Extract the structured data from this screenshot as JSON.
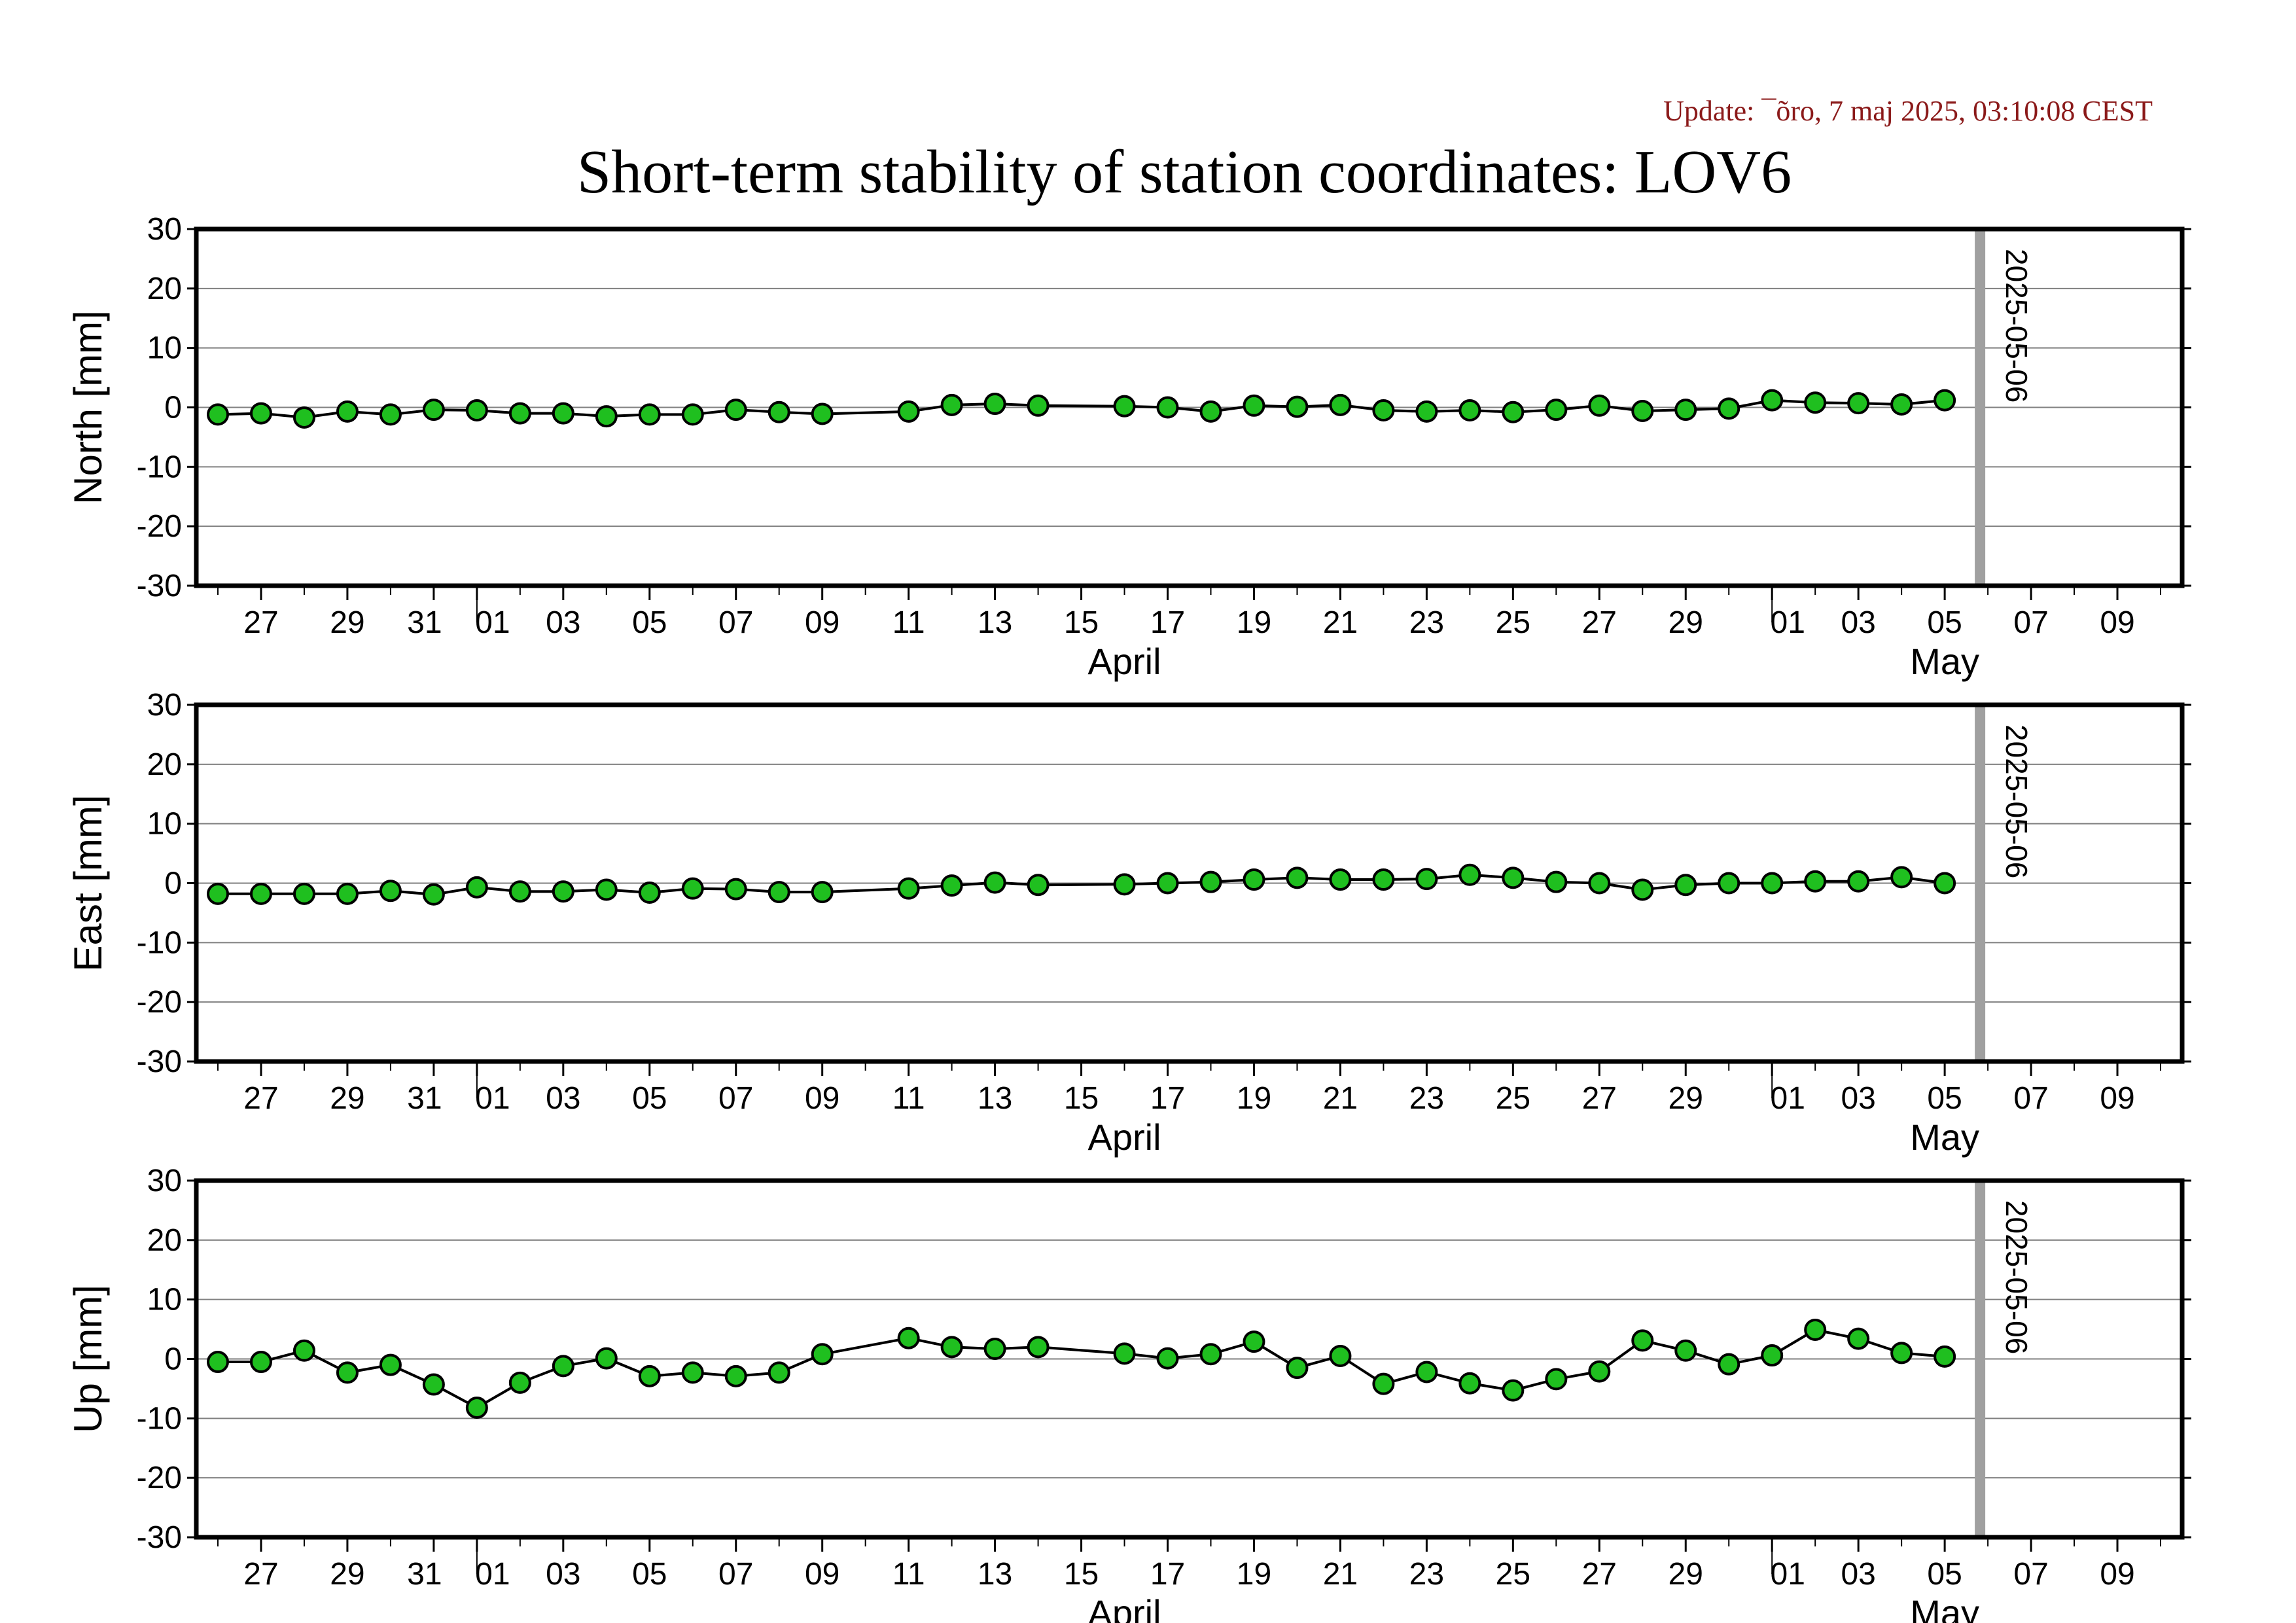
{
  "header": {
    "update": "Update: ¯õro, 7 maj 2025, 03:10:08 CEST",
    "title": "Short-term stability of station coordinates: LOV6"
  },
  "colors": {
    "point_fill": "#1fbf1f",
    "point_stroke": "#000000",
    "line": "#000000",
    "marker_line": "#a0a0a0",
    "grid": "#808080",
    "update_text": "#8b1a1a"
  },
  "chart_data": [
    {
      "type": "line",
      "ylabel": "North [mm]",
      "ylim": [
        -30,
        30
      ],
      "yticks": [
        30,
        20,
        10,
        0,
        -10,
        -20,
        -30
      ],
      "grid": true,
      "xlim": [
        "2025-03-25T12:00",
        "2025-05-10T12:00"
      ],
      "xticks": [
        {
          "date": "2025-03-27",
          "label": "27"
        },
        {
          "date": "2025-03-29",
          "label": "29"
        },
        {
          "date": "2025-03-31",
          "label": "31"
        },
        {
          "date": "2025-04-01",
          "label": "01"
        },
        {
          "date": "2025-04-03",
          "label": "03"
        },
        {
          "date": "2025-04-05",
          "label": "05"
        },
        {
          "date": "2025-04-07",
          "label": "07"
        },
        {
          "date": "2025-04-09",
          "label": "09"
        },
        {
          "date": "2025-04-11",
          "label": "11"
        },
        {
          "date": "2025-04-13",
          "label": "13"
        },
        {
          "date": "2025-04-15",
          "label": "15"
        },
        {
          "date": "2025-04-17",
          "label": "17"
        },
        {
          "date": "2025-04-19",
          "label": "19"
        },
        {
          "date": "2025-04-21",
          "label": "21"
        },
        {
          "date": "2025-04-23",
          "label": "23"
        },
        {
          "date": "2025-04-25",
          "label": "25"
        },
        {
          "date": "2025-04-27",
          "label": "27"
        },
        {
          "date": "2025-04-29",
          "label": "29"
        },
        {
          "date": "2025-05-01",
          "label": "01"
        },
        {
          "date": "2025-05-03",
          "label": "03"
        },
        {
          "date": "2025-05-05",
          "label": "05"
        },
        {
          "date": "2025-05-07",
          "label": "07"
        },
        {
          "date": "2025-05-09",
          "label": "09"
        }
      ],
      "months": [
        {
          "date": "2025-04-16",
          "label": "April"
        },
        {
          "date": "2025-05-05",
          "label": "May"
        }
      ],
      "month_boundaries": [
        "2025-04-01",
        "2025-05-01"
      ],
      "marker": {
        "date": "2025-05-06",
        "label": "2025-05-06"
      },
      "series": [
        {
          "x": [
            "2025-03-26",
            "2025-03-27",
            "2025-03-28",
            "2025-03-29",
            "2025-03-30",
            "2025-03-31",
            "2025-04-01",
            "2025-04-02",
            "2025-04-03",
            "2025-04-04",
            "2025-04-05",
            "2025-04-06",
            "2025-04-07",
            "2025-04-08",
            "2025-04-09",
            "2025-04-11",
            "2025-04-12",
            "2025-04-13",
            "2025-04-14",
            "2025-04-16",
            "2025-04-17",
            "2025-04-18",
            "2025-04-19",
            "2025-04-20",
            "2025-04-21",
            "2025-04-22",
            "2025-04-23",
            "2025-04-24",
            "2025-04-25",
            "2025-04-26",
            "2025-04-27",
            "2025-04-28",
            "2025-04-29",
            "2025-04-30",
            "2025-05-01",
            "2025-05-02",
            "2025-05-03",
            "2025-05-04",
            "2025-05-05"
          ],
          "values": [
            -1.2,
            -1.0,
            -1.7,
            -0.7,
            -1.2,
            -0.4,
            -0.5,
            -1.0,
            -1.0,
            -1.5,
            -1.2,
            -1.2,
            -0.4,
            -0.8,
            -1.1,
            -0.7,
            0.4,
            0.6,
            0.3,
            0.2,
            0.0,
            -0.7,
            0.3,
            0.1,
            0.4,
            -0.5,
            -0.7,
            -0.5,
            -0.8,
            -0.4,
            0.3,
            -0.6,
            -0.4,
            -0.2,
            1.2,
            0.8,
            0.7,
            0.5,
            1.2
          ]
        }
      ]
    },
    {
      "type": "line",
      "ylabel": "East [mm]",
      "ylim": [
        -30,
        30
      ],
      "yticks": [
        30,
        20,
        10,
        0,
        -10,
        -20,
        -30
      ],
      "grid": true,
      "xlim": [
        "2025-03-25T12:00",
        "2025-05-10T12:00"
      ],
      "xticks": [
        {
          "date": "2025-03-27",
          "label": "27"
        },
        {
          "date": "2025-03-29",
          "label": "29"
        },
        {
          "date": "2025-03-31",
          "label": "31"
        },
        {
          "date": "2025-04-01",
          "label": "01"
        },
        {
          "date": "2025-04-03",
          "label": "03"
        },
        {
          "date": "2025-04-05",
          "label": "05"
        },
        {
          "date": "2025-04-07",
          "label": "07"
        },
        {
          "date": "2025-04-09",
          "label": "09"
        },
        {
          "date": "2025-04-11",
          "label": "11"
        },
        {
          "date": "2025-04-13",
          "label": "13"
        },
        {
          "date": "2025-04-15",
          "label": "15"
        },
        {
          "date": "2025-04-17",
          "label": "17"
        },
        {
          "date": "2025-04-19",
          "label": "19"
        },
        {
          "date": "2025-04-21",
          "label": "21"
        },
        {
          "date": "2025-04-23",
          "label": "23"
        },
        {
          "date": "2025-04-25",
          "label": "25"
        },
        {
          "date": "2025-04-27",
          "label": "27"
        },
        {
          "date": "2025-04-29",
          "label": "29"
        },
        {
          "date": "2025-05-01",
          "label": "01"
        },
        {
          "date": "2025-05-03",
          "label": "03"
        },
        {
          "date": "2025-05-05",
          "label": "05"
        },
        {
          "date": "2025-05-07",
          "label": "07"
        },
        {
          "date": "2025-05-09",
          "label": "09"
        }
      ],
      "months": [
        {
          "date": "2025-04-16",
          "label": "April"
        },
        {
          "date": "2025-05-05",
          "label": "May"
        }
      ],
      "month_boundaries": [
        "2025-04-01",
        "2025-05-01"
      ],
      "marker": {
        "date": "2025-05-06",
        "label": "2025-05-06"
      },
      "series": [
        {
          "x": [
            "2025-03-26",
            "2025-03-27",
            "2025-03-28",
            "2025-03-29",
            "2025-03-30",
            "2025-03-31",
            "2025-04-01",
            "2025-04-02",
            "2025-04-03",
            "2025-04-04",
            "2025-04-05",
            "2025-04-06",
            "2025-04-07",
            "2025-04-08",
            "2025-04-09",
            "2025-04-11",
            "2025-04-12",
            "2025-04-13",
            "2025-04-14",
            "2025-04-16",
            "2025-04-17",
            "2025-04-18",
            "2025-04-19",
            "2025-04-20",
            "2025-04-21",
            "2025-04-22",
            "2025-04-23",
            "2025-04-24",
            "2025-04-25",
            "2025-04-26",
            "2025-04-27",
            "2025-04-28",
            "2025-04-29",
            "2025-04-30",
            "2025-05-01",
            "2025-05-02",
            "2025-05-03",
            "2025-05-04",
            "2025-05-05"
          ],
          "values": [
            -1.8,
            -1.8,
            -1.8,
            -1.8,
            -1.3,
            -1.9,
            -0.7,
            -1.4,
            -1.4,
            -1.1,
            -1.6,
            -0.9,
            -1.0,
            -1.5,
            -1.5,
            -0.9,
            -0.4,
            0.1,
            -0.3,
            -0.2,
            0.0,
            0.2,
            0.6,
            0.9,
            0.6,
            0.6,
            0.7,
            1.4,
            0.9,
            0.2,
            0.0,
            -1.1,
            -0.3,
            0.0,
            0.0,
            0.3,
            0.3,
            1.0,
            0.0
          ]
        }
      ]
    },
    {
      "type": "line",
      "ylabel": "Up [mm]",
      "ylim": [
        -30,
        30
      ],
      "yticks": [
        30,
        20,
        10,
        0,
        -10,
        -20,
        -30
      ],
      "grid": true,
      "xlim": [
        "2025-03-25T12:00",
        "2025-05-10T12:00"
      ],
      "xticks": [
        {
          "date": "2025-03-27",
          "label": "27"
        },
        {
          "date": "2025-03-29",
          "label": "29"
        },
        {
          "date": "2025-03-31",
          "label": "31"
        },
        {
          "date": "2025-04-01",
          "label": "01"
        },
        {
          "date": "2025-04-03",
          "label": "03"
        },
        {
          "date": "2025-04-05",
          "label": "05"
        },
        {
          "date": "2025-04-07",
          "label": "07"
        },
        {
          "date": "2025-04-09",
          "label": "09"
        },
        {
          "date": "2025-04-11",
          "label": "11"
        },
        {
          "date": "2025-04-13",
          "label": "13"
        },
        {
          "date": "2025-04-15",
          "label": "15"
        },
        {
          "date": "2025-04-17",
          "label": "17"
        },
        {
          "date": "2025-04-19",
          "label": "19"
        },
        {
          "date": "2025-04-21",
          "label": "21"
        },
        {
          "date": "2025-04-23",
          "label": "23"
        },
        {
          "date": "2025-04-25",
          "label": "25"
        },
        {
          "date": "2025-04-27",
          "label": "27"
        },
        {
          "date": "2025-04-29",
          "label": "29"
        },
        {
          "date": "2025-05-01",
          "label": "01"
        },
        {
          "date": "2025-05-03",
          "label": "03"
        },
        {
          "date": "2025-05-05",
          "label": "05"
        },
        {
          "date": "2025-05-07",
          "label": "07"
        },
        {
          "date": "2025-05-09",
          "label": "09"
        }
      ],
      "months": [
        {
          "date": "2025-04-16",
          "label": "April"
        },
        {
          "date": "2025-05-05",
          "label": "May"
        }
      ],
      "month_boundaries": [
        "2025-04-01",
        "2025-05-01"
      ],
      "marker": {
        "date": "2025-05-06",
        "label": "2025-05-06"
      },
      "series": [
        {
          "x": [
            "2025-03-26",
            "2025-03-27",
            "2025-03-28",
            "2025-03-29",
            "2025-03-30",
            "2025-03-31",
            "2025-04-01",
            "2025-04-02",
            "2025-04-03",
            "2025-04-04",
            "2025-04-05",
            "2025-04-06",
            "2025-04-07",
            "2025-04-08",
            "2025-04-09",
            "2025-04-11",
            "2025-04-12",
            "2025-04-13",
            "2025-04-14",
            "2025-04-16",
            "2025-04-17",
            "2025-04-18",
            "2025-04-19",
            "2025-04-20",
            "2025-04-21",
            "2025-04-22",
            "2025-04-23",
            "2025-04-24",
            "2025-04-25",
            "2025-04-26",
            "2025-04-27",
            "2025-04-28",
            "2025-04-29",
            "2025-04-30",
            "2025-05-01",
            "2025-05-02",
            "2025-05-03",
            "2025-05-04",
            "2025-05-05"
          ],
          "values": [
            -0.5,
            -0.5,
            1.4,
            -2.3,
            -1.0,
            -4.3,
            -8.2,
            -4.0,
            -1.2,
            0.1,
            -2.9,
            -2.3,
            -2.9,
            -2.3,
            0.8,
            3.5,
            2.0,
            1.7,
            2.0,
            0.9,
            0.1,
            0.8,
            2.9,
            -1.5,
            0.5,
            -4.2,
            -2.2,
            -4.1,
            -5.3,
            -3.4,
            -2.1,
            3.1,
            1.4,
            -0.9,
            0.6,
            4.9,
            3.4,
            1.0,
            0.4
          ]
        }
      ]
    }
  ]
}
